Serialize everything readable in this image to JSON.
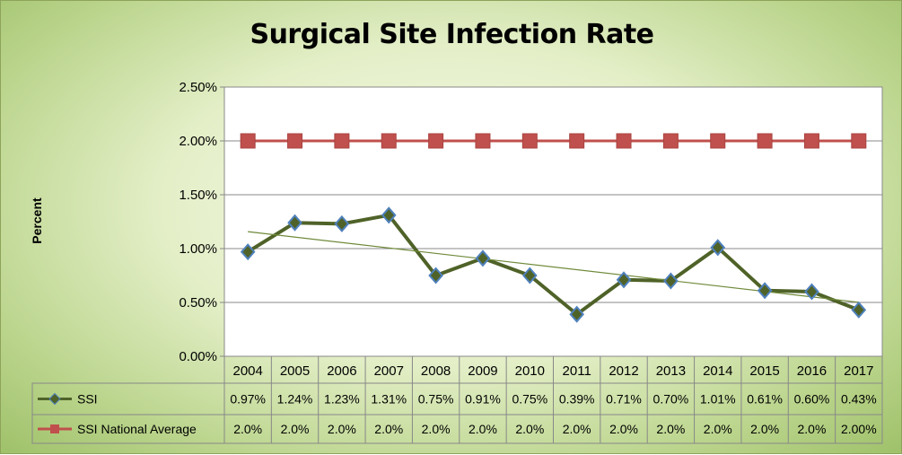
{
  "chart_data": {
    "type": "line",
    "title": "Surgical Site Infection Rate",
    "ylabel": "Percent",
    "xlabel": "",
    "ylim": [
      0,
      2.5
    ],
    "yticks": [
      "0.00%",
      "0.50%",
      "1.00%",
      "1.50%",
      "2.00%",
      "2.50%"
    ],
    "categories": [
      "2004",
      "2005",
      "2006",
      "2007",
      "2008",
      "2009",
      "2010",
      "2011",
      "2012",
      "2013",
      "2014",
      "2015",
      "2016",
      "2017"
    ],
    "series": [
      {
        "name": "SSI",
        "values": [
          0.97,
          1.24,
          1.23,
          1.31,
          0.75,
          0.91,
          0.75,
          0.39,
          0.71,
          0.7,
          1.01,
          0.61,
          0.6,
          0.43
        ],
        "labels": [
          "0.97%",
          "1.24%",
          "1.23%",
          "1.31%",
          "0.75%",
          "0.91%",
          "0.75%",
          "0.39%",
          "0.71%",
          "0.70%",
          "1.01%",
          "0.61%",
          "0.60%",
          "0.43%"
        ],
        "color": "#4f6228",
        "marker": "diamond",
        "marker_color": "#4f6228",
        "marker_edge": "#4f81bd",
        "trendline": "linear"
      },
      {
        "name": "SSI National Average",
        "values": [
          2.0,
          2.0,
          2.0,
          2.0,
          2.0,
          2.0,
          2.0,
          2.0,
          2.0,
          2.0,
          2.0,
          2.0,
          2.0,
          2.0
        ],
        "labels": [
          "2.0%",
          "2.0%",
          "2.0%",
          "2.0%",
          "2.0%",
          "2.0%",
          "2.0%",
          "2.0%",
          "2.0%",
          "2.0%",
          "2.0%",
          "2.0%",
          "2.0%",
          "2.00%"
        ],
        "color": "#c0504d",
        "marker": "square",
        "marker_color": "#c0504d"
      }
    ],
    "grid": true,
    "legend": "data-table"
  },
  "colors": {
    "plot_bg": "#ffffff",
    "grid": "#888888",
    "trendline": "#6f8a3a"
  }
}
